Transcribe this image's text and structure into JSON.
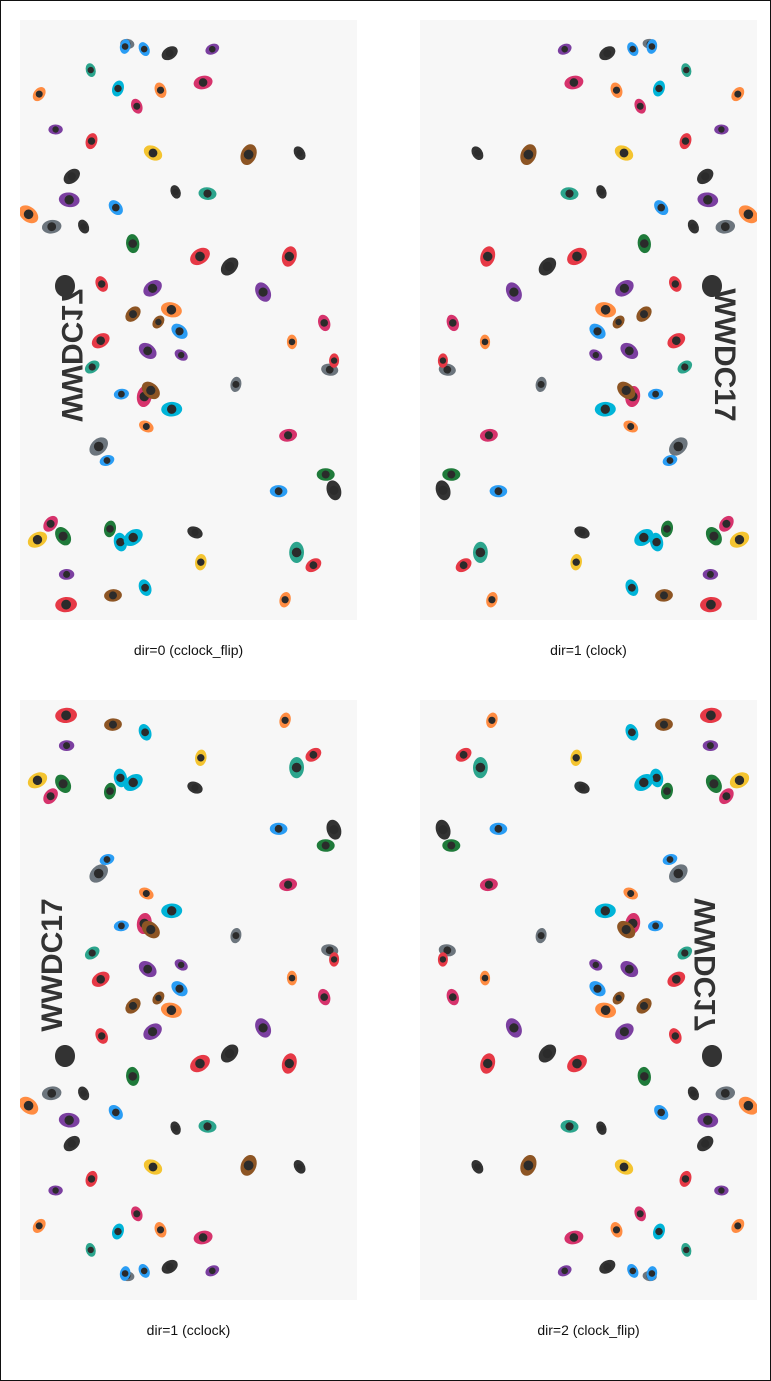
{
  "logo_text": "WWDC17",
  "panels": [
    {
      "caption": "dir=0 (cclock_flip)"
    },
    {
      "caption": "dir=1 (clock)"
    },
    {
      "caption": "dir=1 (cclock)"
    },
    {
      "caption": "dir=2 (clock_flip)"
    }
  ],
  "colors": {
    "panel_bg": "#f7f7f7",
    "figure_palette": [
      "#e63946",
      "#2a9df4",
      "#f4c430",
      "#2ca58d",
      "#7b3fa0",
      "#ff8c42",
      "#1f7a3a",
      "#d6336c",
      "#00b4d8",
      "#6c757d",
      "#8d5524",
      "#333333"
    ]
  }
}
